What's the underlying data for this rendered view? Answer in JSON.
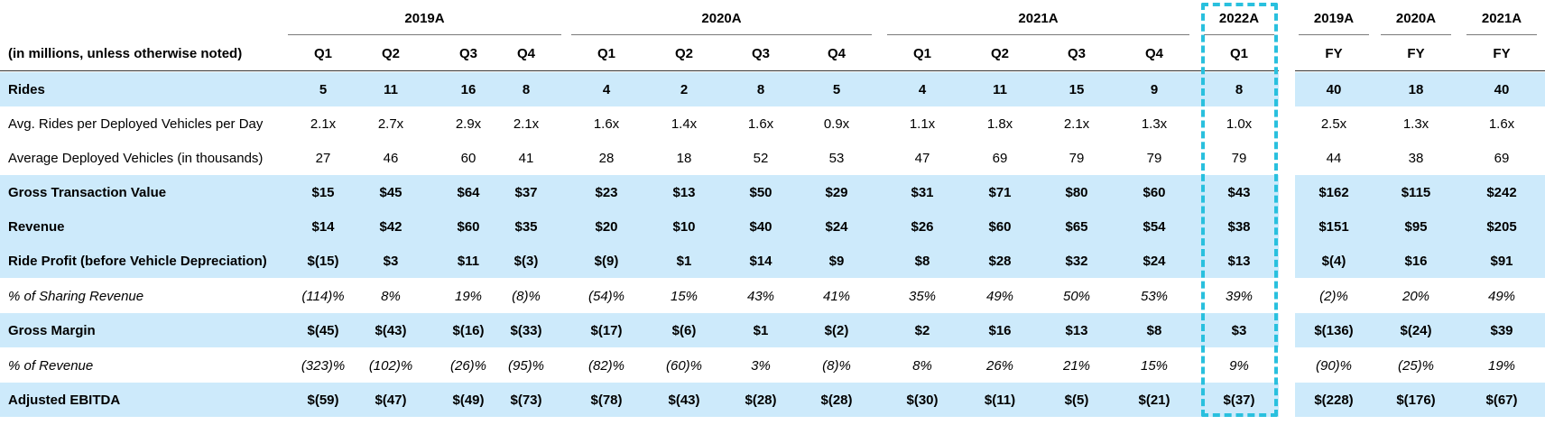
{
  "table": {
    "unit_note": "(in millions, unless otherwise noted)",
    "year_groups": [
      "2019A",
      "2020A",
      "2021A",
      "2022A",
      "2019A",
      "2020A",
      "2021A"
    ],
    "quarters": [
      "Q1",
      "Q2",
      "Q3",
      "Q4",
      "Q1",
      "Q2",
      "Q3",
      "Q4",
      "Q1",
      "Q2",
      "Q3",
      "Q4",
      "Q1",
      "FY",
      "FY",
      "FY"
    ],
    "highlighted_column": "2022A Q1",
    "rows": [
      {
        "label": "Rides",
        "style": "bold",
        "band": true,
        "values": [
          "5",
          "11",
          "16",
          "8",
          "4",
          "2",
          "8",
          "5",
          "4",
          "11",
          "15",
          "9",
          "8",
          "40",
          "18",
          "40"
        ]
      },
      {
        "label": "Avg. Rides per Deployed Vehicles per Day",
        "style": "normal",
        "band": false,
        "values": [
          "2.1x",
          "2.7x",
          "2.9x",
          "2.1x",
          "1.6x",
          "1.4x",
          "1.6x",
          "0.9x",
          "1.1x",
          "1.8x",
          "2.1x",
          "1.3x",
          "1.0x",
          "2.5x",
          "1.3x",
          "1.6x"
        ]
      },
      {
        "label": "Average Deployed Vehicles (in thousands)",
        "style": "normal",
        "band": false,
        "values": [
          "27",
          "46",
          "60",
          "41",
          "28",
          "18",
          "52",
          "53",
          "47",
          "69",
          "79",
          "79",
          "79",
          "44",
          "38",
          "69"
        ]
      },
      {
        "label": "Gross Transaction Value",
        "style": "bold",
        "band": true,
        "values": [
          "$15",
          "$45",
          "$64",
          "$37",
          "$23",
          "$13",
          "$50",
          "$29",
          "$31",
          "$71",
          "$80",
          "$60",
          "$43",
          "$162",
          "$115",
          "$242"
        ]
      },
      {
        "label": "Revenue",
        "style": "bold",
        "band": true,
        "values": [
          "$14",
          "$42",
          "$60",
          "$35",
          "$20",
          "$10",
          "$40",
          "$24",
          "$26",
          "$60",
          "$65",
          "$54",
          "$38",
          "$151",
          "$95",
          "$205"
        ]
      },
      {
        "label": "Ride Profit (before Vehicle Depreciation)",
        "style": "bold",
        "band": true,
        "values": [
          "$(15)",
          "$3",
          "$11",
          "$(3)",
          "$(9)",
          "$1",
          "$14",
          "$9",
          "$8",
          "$28",
          "$32",
          "$24",
          "$13",
          "$(4)",
          "$16",
          "$91"
        ]
      },
      {
        "label": "% of Sharing Revenue",
        "style": "italic",
        "band": false,
        "values": [
          "(114)%",
          "8%",
          "19%",
          "(8)%",
          "(54)%",
          "15%",
          "43%",
          "41%",
          "35%",
          "49%",
          "50%",
          "53%",
          "39%",
          "(2)%",
          "20%",
          "49%"
        ]
      },
      {
        "label": "Gross Margin",
        "style": "bold",
        "band": true,
        "values": [
          "$(45)",
          "$(43)",
          "$(16)",
          "$(33)",
          "$(17)",
          "$(6)",
          "$1",
          "$(2)",
          "$2",
          "$16",
          "$13",
          "$8",
          "$3",
          "$(136)",
          "$(24)",
          "$39"
        ]
      },
      {
        "label": "% of Revenue",
        "style": "italic",
        "band": false,
        "values": [
          "(323)%",
          "(102)%",
          "(26)%",
          "(95)%",
          "(82)%",
          "(60)%",
          "3%",
          "(8)%",
          "8%",
          "26%",
          "21%",
          "15%",
          "9%",
          "(90)%",
          "(25)%",
          "19%"
        ]
      },
      {
        "label": "Adjusted EBITDA",
        "style": "bold",
        "band": true,
        "values": [
          "$(59)",
          "$(47)",
          "$(49)",
          "$(73)",
          "$(78)",
          "$(43)",
          "$(28)",
          "$(28)",
          "$(30)",
          "$(11)",
          "$(5)",
          "$(21)",
          "$(37)",
          "$(228)",
          "$(176)",
          "$(67)"
        ]
      }
    ]
  }
}
